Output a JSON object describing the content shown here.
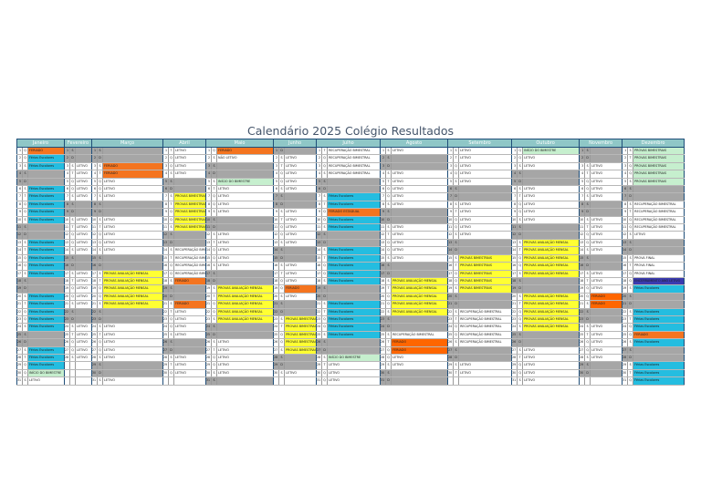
{
  "title": "Calendário 2025 Colégio Resultados",
  "months": [
    {
      "name": "Janeiro",
      "start": 3,
      "days": 31,
      "w": 52,
      "events": {
        "1": [
          "FERIADO",
          "hol"
        ],
        "2": [
          "Férias Escolares",
          "vac"
        ],
        "3": [
          "Férias Escolares",
          "vac"
        ],
        "6": [
          "Férias Escolares",
          "vac"
        ],
        "7": [
          "Férias Escolares",
          "vac"
        ],
        "8": [
          "Férias Escolares",
          "vac"
        ],
        "9": [
          "Férias Escolares",
          "vac"
        ],
        "10": [
          "Férias Escolares",
          "vac"
        ],
        "13": [
          "Férias Escolares",
          "vac"
        ],
        "14": [
          "Férias Escolares",
          "vac"
        ],
        "15": [
          "Férias Escolares",
          "vac"
        ],
        "16": [
          "Férias Escolares",
          "vac"
        ],
        "17": [
          "Férias Escolares",
          "vac"
        ],
        "20": [
          "Férias Escolares",
          "vac"
        ],
        "21": [
          "Férias Escolares",
          "vac"
        ],
        "22": [
          "Férias Escolares",
          "vac"
        ],
        "23": [
          "Férias Escolares",
          "vac"
        ],
        "24": [
          "Férias Escolares",
          "vac"
        ],
        "27": [
          "Férias Escolares",
          "vac"
        ],
        "28": [
          "Férias Escolares",
          "vac"
        ],
        "29": [
          "Férias Escolares",
          "vac"
        ],
        "30": [
          "INÍCIO DO BIMESTRE",
          "ini"
        ],
        "31": [
          "LETIVO",
          ""
        ]
      }
    },
    {
      "name": "Fevereiro",
      "start": 6,
      "days": 28,
      "w": 30,
      "events": {}
    },
    {
      "name": "Março",
      "start": 6,
      "days": 31,
      "w": 78,
      "events": {
        "3": [
          "FERIADO",
          "hol"
        ],
        "4": [
          "FERIADO",
          "hol"
        ],
        "5": [
          "LETIVO",
          ""
        ],
        "17": [
          "PROVAS AVALIAÇÃO MENSAL",
          "ava"
        ],
        "18": [
          "PROVAS AVALIAÇÃO MENSAL",
          "ava"
        ],
        "19": [
          "PROVAS AVALIAÇÃO MENSAL",
          "ava"
        ],
        "20": [
          "PROVAS AVALIAÇÃO MENSAL",
          "ava"
        ],
        "21": [
          "PROVAS AVALIAÇÃO MENSAL",
          "ava"
        ]
      }
    },
    {
      "name": "Abril",
      "start": 2,
      "days": 30,
      "w": 47,
      "events": {
        "18": [
          "FERIADO",
          "hol"
        ],
        "21": [
          "FERIADO",
          "hol"
        ],
        "7": [
          "PROVAS BIMESTRAIS",
          "ava"
        ],
        "8": [
          "PROVAS BIMESTRAIS",
          "ava"
        ],
        "9": [
          "PROVAS BIMESTRAIS",
          "ava"
        ],
        "10": [
          "PROVAS BIMESTRAIS",
          "ava"
        ],
        "11": [
          "PROVAS BIMESTRAIS",
          "ava"
        ],
        "14": [
          "RECUPERAÇÃO BIMESTRAL",
          "rec"
        ],
        "15": [
          "RECUPERAÇÃO BIMESTRAL",
          "rec"
        ],
        "16": [
          "RECUPERAÇÃO BIMESTRAL",
          "rec"
        ],
        "17": [
          "RECUPERAÇÃO BIMESTRAL",
          "rec"
        ]
      }
    },
    {
      "name": "Maio",
      "start": 4,
      "days": 31,
      "w": 74,
      "events": {
        "1": [
          "FERIADO",
          "hol"
        ],
        "2": [
          "NÃO LETIVO",
          ""
        ],
        "5": [
          "INÍCIO DO BIMESTRE",
          "ini"
        ],
        "19": [
          "PROVAS AVALIAÇÃO MENSAL",
          "ava"
        ],
        "20": [
          "PROVAS AVALIAÇÃO MENSAL",
          "ava"
        ],
        "21": [
          "PROVAS AVALIAÇÃO MENSAL",
          "ava"
        ],
        "22": [
          "PROVAS AVALIAÇÃO MENSAL",
          "ava"
        ],
        "23": [
          "PROVAS AVALIAÇÃO MENSAL",
          "ava"
        ]
      }
    },
    {
      "name": "Junho",
      "start": 0,
      "days": 30,
      "w": 47,
      "events": {
        "19": [
          "FERIADO",
          "hol"
        ],
        "23": [
          "PROVAS BIMESTRAIS",
          "ava"
        ],
        "24": [
          "PROVAS BIMESTRAIS",
          "ava"
        ],
        "25": [
          "PROVAS BIMESTRAIS",
          "ava"
        ],
        "26": [
          "PROVAS BIMESTRAIS",
          "ava"
        ],
        "27": [
          "PROVAS BIMESTRAIS",
          "ava"
        ]
      }
    },
    {
      "name": "Julho",
      "start": 2,
      "days": 31,
      "w": 70,
      "events": {
        "1": [
          "RECUPERAÇÃO BIMESTRAL",
          "rec"
        ],
        "2": [
          "RECUPERAÇÃO BIMESTRAL",
          "rec"
        ],
        "3": [
          "RECUPERAÇÃO BIMESTRAL",
          "rec"
        ],
        "4": [
          "RECUPERAÇÃO BIMESTRAL",
          "rec"
        ],
        "7": [
          "Férias Escolares",
          "vac"
        ],
        "8": [
          "Férias Escolares",
          "vac"
        ],
        "9": [
          "FERIADO ESTADUAL",
          "hol"
        ],
        "10": [
          "Férias Escolares",
          "vac"
        ],
        "11": [
          "Férias Escolares",
          "vac"
        ],
        "14": [
          "Férias Escolares",
          "vac"
        ],
        "15": [
          "Férias Escolares",
          "vac"
        ],
        "16": [
          "Férias Escolares",
          "vac"
        ],
        "17": [
          "Férias Escolares",
          "vac"
        ],
        "18": [
          "Férias Escolares",
          "vac"
        ],
        "21": [
          "Férias Escolares",
          "vac"
        ],
        "22": [
          "Férias Escolares",
          "vac"
        ],
        "23": [
          "Férias Escolares",
          "vac"
        ],
        "24": [
          "Férias Escolares",
          "vac"
        ],
        "25": [
          "Férias Escolares",
          "vac"
        ],
        "28": [
          "INÍCIO DO BIMESTRE",
          "ini"
        ],
        "29": [
          "LETIVO",
          ""
        ]
      }
    },
    {
      "name": "Agosto",
      "start": 5,
      "days": 31,
      "w": 74,
      "events": {
        "18": [
          "PROVAS AVALIAÇÃO MENSAL",
          "ava"
        ],
        "19": [
          "PROVAS AVALIAÇÃO MENSAL",
          "ava"
        ],
        "20": [
          "PROVAS AVALIAÇÃO MENSAL",
          "ava"
        ],
        "21": [
          "PROVAS AVALIAÇÃO MENSAL",
          "ava"
        ],
        "22": [
          "PROVAS AVALIAÇÃO MENSAL",
          "ava"
        ],
        "25": [
          "RECUPERAÇÃO BIMESTRAL",
          "rec"
        ],
        "26": [
          "FERIADO",
          "hol2"
        ],
        "27": [
          "FERIADO",
          "hol2"
        ]
      }
    },
    {
      "name": "Setembro",
      "start": 1,
      "days": 30,
      "w": 70,
      "events": {
        "7": [
          "",
          ""
        ],
        "15": [
          "PROVAS BIMESTRAIS",
          "ava"
        ],
        "16": [
          "PROVAS BIMESTRAIS",
          "ava"
        ],
        "17": [
          "PROVAS BIMESTRAIS",
          "ava"
        ],
        "18": [
          "PROVAS BIMESTRAIS",
          "ava"
        ],
        "19": [
          "PROVAS BIMESTRAIS",
          "ava"
        ],
        "22": [
          "RECUPERAÇÃO BIMESTRAL",
          "rec"
        ],
        "23": [
          "RECUPERAÇÃO BIMESTRAL",
          "rec"
        ],
        "24": [
          "RECUPERAÇÃO BIMESTRAL",
          "rec"
        ],
        "25": [
          "RECUPERAÇÃO BIMESTRAL",
          "rec"
        ],
        "26": [
          "RECUPERAÇÃO BIMESTRAL",
          "rec"
        ]
      }
    },
    {
      "name": "Outubro",
      "start": 3,
      "days": 31,
      "w": 74,
      "events": {
        "1": [
          "INÍCIO DO BIMESTRE",
          "ini"
        ],
        "13": [
          "PROVAS AVALIAÇÃO MENSAL",
          "ava"
        ],
        "14": [
          "PROVAS AVALIAÇÃO MENSAL",
          "ava"
        ],
        "15": [
          "PROVAS AVALIAÇÃO MENSAL",
          "ava"
        ],
        "16": [
          "PROVAS AVALIAÇÃO MENSAL",
          "ava"
        ],
        "17": [
          "PROVAS AVALIAÇÃO MENSAL",
          "ava"
        ],
        "20": [
          "PROVAS AVALIAÇÃO MENSAL",
          "ava"
        ],
        "21": [
          "PROVAS AVALIAÇÃO MENSAL",
          "ava"
        ],
        "22": [
          "PROVAS AVALIAÇÃO MENSAL",
          "ava"
        ],
        "23": [
          "PROVAS AVALIAÇÃO MENSAL",
          "ava"
        ],
        "24": [
          "PROVAS AVALIAÇÃO MENSAL",
          "ava"
        ]
      }
    },
    {
      "name": "Novembro",
      "start": 6,
      "days": 30,
      "w": 47,
      "events": {
        "20": [
          "FERIADO",
          "hol2"
        ],
        "21": [
          "FERIADO",
          "hol2"
        ]
      }
    },
    {
      "name": "Dezembro",
      "start": 1,
      "days": 31,
      "w": 68,
      "events": {
        "1": [
          "PROVAS BIMESTRAIS",
          "ini"
        ],
        "2": [
          "PROVAS BIMESTRAIS",
          "ini"
        ],
        "3": [
          "PROVAS BIMESTRAIS",
          "ini"
        ],
        "4": [
          "PROVAS BIMESTRAIS",
          "ini"
        ],
        "5": [
          "PROVAS BIMESTRAIS",
          "ini"
        ],
        "8": [
          "RECUPERAÇÃO BIMESTRAL",
          ""
        ],
        "9": [
          "RECUPERAÇÃO BIMESTRAL",
          ""
        ],
        "10": [
          "RECUPERAÇÃO BIMESTRAL",
          ""
        ],
        "11": [
          "RECUPERAÇÃO BIMESTRAL",
          ""
        ],
        "12": [
          "LETIVO",
          ""
        ],
        "15": [
          "PROVA FINAL",
          ""
        ],
        "16": [
          "PROVA FINAL",
          ""
        ],
        "17": [
          "PROVA FINAL",
          ""
        ],
        "18": [
          "ENCERRAMENTO ANO LETIVO",
          "sp"
        ],
        "19": [
          "Férias Escolares",
          "vac"
        ],
        "22": [
          "Férias Escolares",
          "vac"
        ],
        "23": [
          "Férias Escolares",
          "vac"
        ],
        "24": [
          "Férias Escolares",
          "vac"
        ],
        "25": [
          "FERIADO",
          "hol"
        ],
        "26": [
          "Férias Escolares",
          "vac"
        ],
        "29": [
          "Férias Escolares",
          "vac"
        ],
        "30": [
          "Férias Escolares",
          "vac"
        ],
        "31": [
          "Férias Escolares",
          "vac"
        ]
      }
    }
  ],
  "weekday_letters": [
    "D",
    "S",
    "T",
    "Q",
    "Q",
    "S",
    "S"
  ],
  "default_label": "LETIVO"
}
